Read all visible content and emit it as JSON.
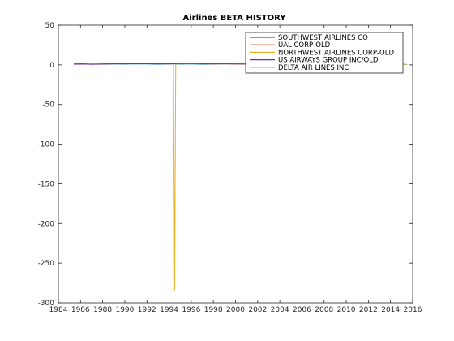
{
  "chart_data": {
    "type": "line",
    "title": "Airlines BETA HISTORY",
    "xlabel": "",
    "ylabel": "",
    "xlim": [
      1984,
      2016
    ],
    "ylim": [
      -300,
      50
    ],
    "xticks": [
      1984,
      1986,
      1988,
      1990,
      1992,
      1994,
      1996,
      1998,
      2000,
      2002,
      2004,
      2006,
      2008,
      2010,
      2012,
      2014,
      2016
    ],
    "yticks": [
      50,
      0,
      -50,
      -100,
      -150,
      -200,
      -250,
      -300
    ],
    "grid": false,
    "legend_position": "top-right",
    "series": [
      {
        "name": "SOUTHWEST AIRLINES CO",
        "color": "#0072BD",
        "x": [
          1985.4,
          1986,
          1987,
          1988,
          1989,
          1990,
          1991,
          1992,
          1993,
          1994,
          1995,
          1996,
          1997,
          1998,
          1999,
          2000,
          2001
        ],
        "y": [
          1.0,
          1.2,
          0.8,
          0.9,
          1.1,
          1.0,
          1.3,
          1.1,
          0.9,
          1.2,
          1.0,
          1.1,
          0.9,
          1.0,
          1.2,
          1.1,
          1.0
        ]
      },
      {
        "name": "UAL CORP-OLD",
        "color": "#D95319",
        "x": [
          1985.4,
          1986,
          1987,
          1988,
          1989,
          1990,
          1991,
          1992,
          1993,
          1994,
          1995,
          1996,
          1997,
          1998,
          1999,
          2000,
          2001
        ],
        "y": [
          1.2,
          1.5,
          1.0,
          1.3,
          1.4,
          1.6,
          1.8,
          1.5,
          1.4,
          1.7,
          1.9,
          2.3,
          1.5,
          1.3,
          1.4,
          1.2,
          1.1
        ]
      },
      {
        "name": "NORTHWEST AIRLINES CORP-OLD",
        "color": "#EDB120",
        "x": [
          1994.2,
          1994.4,
          1994.5,
          1994.6,
          1995,
          1996,
          1997,
          1998,
          1999,
          2000,
          2001
        ],
        "y": [
          1.0,
          1.0,
          -284,
          1.2,
          1.5,
          1.8,
          1.4,
          1.2,
          1.3,
          1.1,
          1.0
        ]
      },
      {
        "name": "US AIRWAYS GROUP INC/OLD",
        "color": "#7E2F8E",
        "x": [
          1985.4,
          1986,
          1987,
          1988,
          1989,
          1990,
          1991,
          1992,
          1993,
          1994,
          1995,
          1996,
          1997,
          1998,
          1999,
          2000,
          2001
        ],
        "y": [
          0.8,
          1.0,
          0.7,
          1.0,
          1.2,
          1.3,
          1.5,
          1.4,
          1.2,
          1.1,
          1.6,
          1.9,
          1.4,
          1.2,
          1.3,
          1.1,
          1.0
        ]
      },
      {
        "name": "DELTA AIR LINES INC",
        "color": "#77AC30",
        "x": [
          2007.4,
          2008,
          2009,
          2010,
          2011,
          2012,
          2013,
          2014,
          2015,
          2015.5
        ],
        "y": [
          1.0,
          1.2,
          1.1,
          1.3,
          1.2,
          1.0,
          1.1,
          1.2,
          1.0,
          0.5
        ]
      }
    ]
  }
}
